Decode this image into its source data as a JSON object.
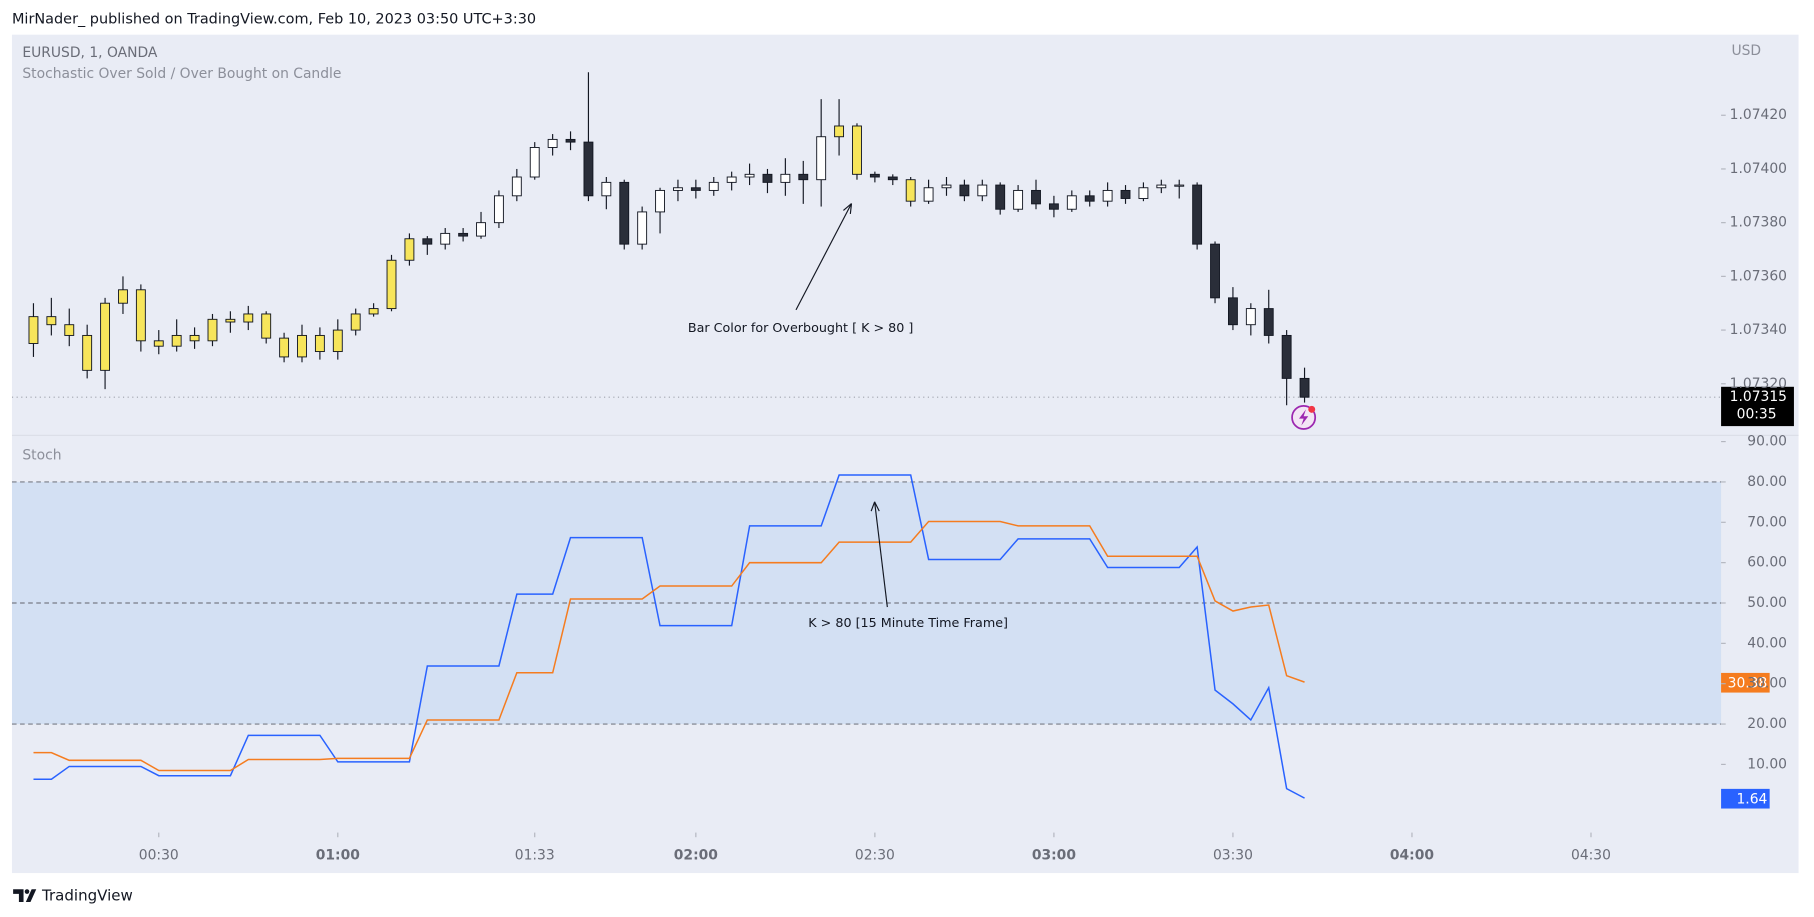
{
  "header": {
    "byline": "MirNader_ published on TradingView.com, Feb 10, 2023 03:50 UTC+3:30"
  },
  "footer": {
    "brand": "TradingView"
  },
  "chart_data": [
    {
      "type": "candlestick",
      "title": "EURUSD, 1, OANDA",
      "subtitle": "Stochastic Over Sold / Over Bought on Candle",
      "y_unit": "USD",
      "countdown": "00:35",
      "annotations": [
        "Bar Color for Overbought [ K > 80 ]"
      ],
      "xlim": [
        5.4,
        291.8
      ],
      "ylim": [
        1.07301,
        1.0745
      ],
      "yticks": [
        {
          "value": 1.0742,
          "label": "1.07420"
        },
        {
          "value": 1.074,
          "label": "1.07400"
        },
        {
          "value": 1.0738,
          "label": "1.07380"
        },
        {
          "value": 1.0736,
          "label": "1.07360"
        },
        {
          "value": 1.0734,
          "label": "1.07340"
        },
        {
          "value": 1.0732,
          "label": "1.07320"
        }
      ],
      "x": [
        9,
        12,
        15,
        18,
        21,
        24,
        27,
        30,
        33,
        36,
        39,
        42,
        45,
        48,
        51,
        54,
        57,
        60,
        63,
        66,
        69,
        72,
        75,
        78,
        81,
        84,
        87,
        90,
        93,
        96,
        99,
        102,
        105,
        108,
        111,
        114,
        117,
        120,
        123,
        126,
        129,
        132,
        135,
        138,
        141,
        144,
        147,
        150,
        153,
        156,
        159,
        162,
        165,
        168,
        171,
        174,
        177,
        180,
        183,
        186,
        189,
        192,
        195,
        198,
        201,
        204,
        207,
        210,
        213,
        216,
        219,
        222
      ],
      "open": [
        1.07335,
        1.07345,
        1.07342,
        1.07338,
        1.07325,
        1.0735,
        1.07355,
        1.07336,
        1.07334,
        1.07338,
        1.07336,
        1.07344,
        1.07343,
        1.07346,
        1.07337,
        1.0733,
        1.07338,
        1.07332,
        1.0734,
        1.07346,
        1.07348,
        1.07366,
        1.07374,
        1.07372,
        1.07376,
        1.07375,
        1.0738,
        1.0739,
        1.07397,
        1.07408,
        1.07411,
        1.0741,
        1.0739,
        1.07395,
        1.07372,
        1.07384,
        1.07392,
        1.07393,
        1.07392,
        1.07395,
        1.07397,
        1.07398,
        1.07395,
        1.07398,
        1.07396,
        1.07412,
        1.07416,
        1.07398,
        1.07397,
        1.07396,
        1.07388,
        1.07393,
        1.07394,
        1.0739,
        1.07394,
        1.07385,
        1.07392,
        1.07387,
        1.07385,
        1.0739,
        1.07388,
        1.07392,
        1.07389,
        1.07393,
        1.07394,
        1.07394,
        1.07372,
        1.07352,
        1.07342,
        1.07348,
        1.07338,
        1.07322
      ],
      "high": [
        1.0735,
        1.07352,
        1.07348,
        1.07342,
        1.07352,
        1.0736,
        1.07357,
        1.0734,
        1.07344,
        1.07341,
        1.07346,
        1.07347,
        1.07349,
        1.07347,
        1.07339,
        1.07342,
        1.07341,
        1.07344,
        1.07348,
        1.0735,
        1.07368,
        1.07376,
        1.07375,
        1.07378,
        1.07378,
        1.07384,
        1.07392,
        1.074,
        1.0741,
        1.07413,
        1.07414,
        1.07436,
        1.07397,
        1.07396,
        1.07386,
        1.07393,
        1.07396,
        1.07396,
        1.07397,
        1.07399,
        1.07402,
        1.074,
        1.07404,
        1.07403,
        1.07426,
        1.07426,
        1.07417,
        1.07399,
        1.07398,
        1.07397,
        1.07396,
        1.07397,
        1.07396,
        1.07396,
        1.07395,
        1.07394,
        1.07396,
        1.0739,
        1.07392,
        1.07392,
        1.07395,
        1.07394,
        1.07395,
        1.07396,
        1.07396,
        1.07395,
        1.07373,
        1.07356,
        1.0735,
        1.07355,
        1.0734,
        1.07326
      ],
      "low": [
        1.0733,
        1.07338,
        1.07334,
        1.07322,
        1.07318,
        1.07346,
        1.07332,
        1.07331,
        1.07332,
        1.07333,
        1.07334,
        1.07339,
        1.0734,
        1.07335,
        1.07328,
        1.07328,
        1.07329,
        1.07329,
        1.07338,
        1.07345,
        1.07347,
        1.07364,
        1.07368,
        1.0737,
        1.07373,
        1.07374,
        1.07378,
        1.07388,
        1.07396,
        1.07405,
        1.07407,
        1.07388,
        1.07385,
        1.0737,
        1.0737,
        1.07376,
        1.07388,
        1.07389,
        1.0739,
        1.07392,
        1.07394,
        1.07391,
        1.0739,
        1.07387,
        1.07386,
        1.07405,
        1.07396,
        1.07395,
        1.07394,
        1.07386,
        1.07387,
        1.0739,
        1.07388,
        1.07388,
        1.07383,
        1.07384,
        1.07385,
        1.07382,
        1.07384,
        1.07386,
        1.07386,
        1.07387,
        1.07388,
        1.07391,
        1.07389,
        1.0737,
        1.0735,
        1.0734,
        1.07338,
        1.07335,
        1.07312,
        1.07313
      ],
      "close": [
        1.07345,
        1.07342,
        1.07338,
        1.07325,
        1.0735,
        1.07355,
        1.07336,
        1.07334,
        1.07338,
        1.07336,
        1.07344,
        1.07343,
        1.07346,
        1.07337,
        1.0733,
        1.07338,
        1.07332,
        1.0734,
        1.07346,
        1.07348,
        1.07366,
        1.07374,
        1.07372,
        1.07376,
        1.07375,
        1.0738,
        1.0739,
        1.07397,
        1.07408,
        1.07411,
        1.0741,
        1.0739,
        1.07395,
        1.07372,
        1.07384,
        1.07392,
        1.07393,
        1.07392,
        1.07395,
        1.07397,
        1.07398,
        1.07395,
        1.07398,
        1.07396,
        1.07412,
        1.07416,
        1.07398,
        1.07397,
        1.07396,
        1.07388,
        1.07393,
        1.07394,
        1.0739,
        1.07394,
        1.07385,
        1.07392,
        1.07387,
        1.07385,
        1.0739,
        1.07388,
        1.07392,
        1.07389,
        1.07393,
        1.07394,
        1.07394,
        1.07372,
        1.07352,
        1.07342,
        1.07348,
        1.07338,
        1.07322,
        1.07315
      ],
      "up_color": "#ffffff",
      "down_color": "#2a2e39",
      "highlight_color": "#f7e55b",
      "highlighted": [
        true,
        true,
        true,
        true,
        true,
        true,
        true,
        true,
        true,
        true,
        true,
        true,
        true,
        true,
        true,
        true,
        true,
        true,
        true,
        true,
        true,
        true,
        false,
        false,
        false,
        false,
        false,
        false,
        false,
        false,
        false,
        false,
        false,
        false,
        false,
        false,
        false,
        false,
        false,
        false,
        false,
        false,
        false,
        false,
        false,
        true,
        true,
        false,
        false,
        true,
        false,
        false,
        false,
        false,
        false,
        false,
        false,
        false,
        false,
        false,
        false,
        false,
        false,
        false,
        false,
        false,
        false,
        false,
        false,
        false,
        false,
        false
      ]
    },
    {
      "type": "line",
      "title": "Stoch",
      "xlim": [
        5.4,
        291.8
      ],
      "ylim": [
        -6.9,
        91.4
      ],
      "yticks": [
        {
          "value": 90,
          "label": "90.00"
        },
        {
          "value": 80,
          "label": "80.00"
        },
        {
          "value": 70,
          "label": "70.00"
        },
        {
          "value": 60,
          "label": "60.00"
        },
        {
          "value": 50,
          "label": "50.00"
        },
        {
          "value": 40,
          "label": "40.00"
        },
        {
          "value": 30,
          "label": "30.00"
        },
        {
          "value": 20,
          "label": "20.00"
        },
        {
          "value": 10,
          "label": "10.00"
        }
      ],
      "xticks": [
        {
          "value": 30,
          "label": "00:30"
        },
        {
          "value": 60,
          "label": "01:00"
        },
        {
          "value": 93,
          "label": "01:33"
        },
        {
          "value": 120,
          "label": "02:00"
        },
        {
          "value": 150,
          "label": "02:30"
        },
        {
          "value": 180,
          "label": "03:00"
        },
        {
          "value": 210,
          "label": "03:30"
        },
        {
          "value": 240,
          "label": "04:00"
        },
        {
          "value": 270,
          "label": "04:30"
        }
      ],
      "band": [
        20,
        80
      ],
      "band_color": "#d3e0f3",
      "hlines": [
        80,
        50,
        20
      ],
      "annotations": [
        "K > 80 [15 Minute Time Frame]"
      ],
      "x": [
        9,
        12,
        15,
        18,
        21,
        24,
        27,
        30,
        33,
        36,
        39,
        42,
        45,
        48,
        51,
        54,
        57,
        60,
        63,
        66,
        69,
        72,
        75,
        78,
        81,
        84,
        87,
        90,
        93,
        96,
        99,
        102,
        105,
        108,
        111,
        114,
        117,
        120,
        123,
        126,
        129,
        132,
        135,
        138,
        141,
        144,
        147,
        150,
        153,
        156,
        159,
        162,
        165,
        168,
        171,
        174,
        177,
        180,
        183,
        186,
        189,
        192,
        195,
        198,
        201,
        204,
        207,
        210,
        213,
        216,
        219,
        222
      ],
      "series": [
        {
          "color": "#2962ff",
          "values": [
            6.3,
            6.3,
            9.5,
            9.5,
            9.5,
            9.5,
            9.5,
            7.2,
            7.2,
            7.2,
            7.2,
            7.2,
            17.2,
            17.2,
            17.2,
            17.2,
            17.2,
            10.6,
            10.6,
            10.6,
            10.6,
            10.6,
            34.4,
            34.4,
            34.4,
            34.4,
            34.4,
            52.2,
            52.2,
            52.2,
            66.2,
            66.2,
            66.2,
            66.2,
            66.2,
            44.4,
            44.4,
            44.4,
            44.4,
            44.4,
            69.1,
            69.1,
            69.1,
            69.1,
            69.1,
            81.7,
            81.7,
            81.7,
            81.7,
            81.7,
            60.8,
            60.8,
            60.8,
            60.8,
            60.8,
            65.9,
            65.9,
            65.9,
            65.9,
            65.9,
            58.8,
            58.8,
            58.8,
            58.8,
            58.8,
            63.9,
            28.4,
            25,
            21,
            29,
            4,
            1.64
          ]
        },
        {
          "color": "#f57c1f",
          "values": [
            12.9,
            12.9,
            11,
            11,
            11,
            11,
            11,
            8.5,
            8.5,
            8.5,
            8.5,
            8.5,
            11.2,
            11.2,
            11.2,
            11.2,
            11.2,
            11.5,
            11.5,
            11.5,
            11.5,
            11.5,
            21,
            21,
            21,
            21,
            21,
            32.7,
            32.7,
            32.7,
            51,
            51,
            51,
            51,
            51,
            54.2,
            54.2,
            54.2,
            54.2,
            54.2,
            60,
            60,
            60,
            60,
            60,
            65.1,
            65.1,
            65.1,
            65.1,
            65.1,
            70.2,
            70.2,
            70.2,
            70.2,
            70.2,
            69.1,
            69.1,
            69.1,
            69.1,
            69.1,
            61.6,
            61.6,
            61.6,
            61.6,
            61.6,
            61.6,
            50.5,
            48,
            49,
            49.5,
            32,
            30.38
          ]
        }
      ]
    }
  ]
}
